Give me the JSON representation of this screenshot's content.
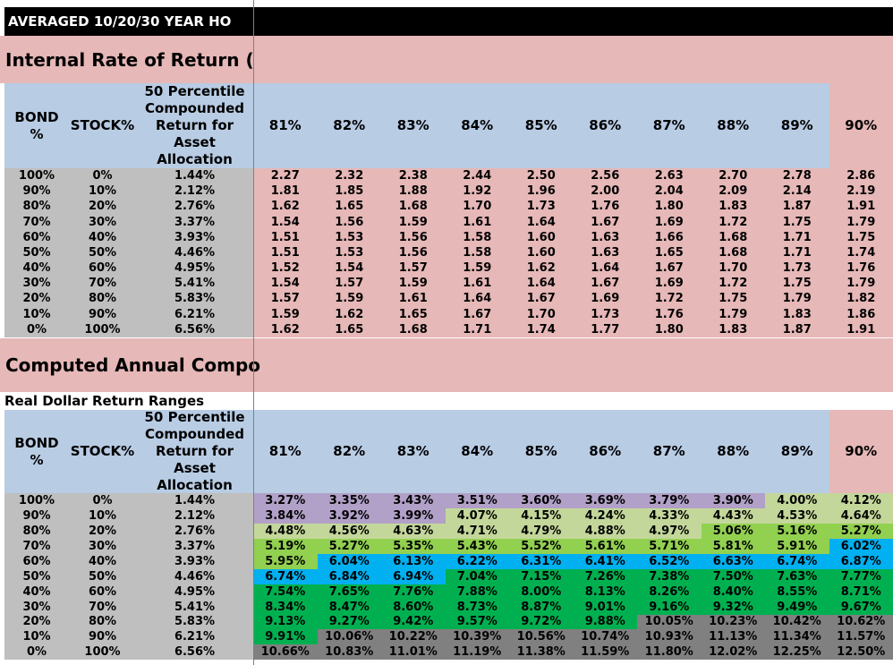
{
  "window": {
    "title_bar_text": "AVERAGED 10/20/30 YEAR HO"
  },
  "headings": {
    "section1": "Internal Rate of Return (",
    "section2": "Computed Annual Compo",
    "subheading_real_dollar": "Real Dollar Return Ranges"
  },
  "colors": {
    "title_bar_bg": "#000000",
    "title_bar_text": "#ffffff",
    "band_pink": "#E6B8B7",
    "header_blue": "#B8CCE4",
    "label_gray": "#BFBFBF",
    "irr_data_pink": "#E6B8B7",
    "divider_gray": "#808080"
  },
  "value_color_bands": {
    "3": "#B1A0C7",
    "4": "#C4D79B",
    "5": "#92D050",
    "6": "#00B0F0",
    "7": "#00B050",
    "8": "#00B050",
    "9": "#00B050",
    "10": "#808080",
    "11": "#808080",
    "12": "#808080"
  },
  "table_header": {
    "bond": "BOND\n%",
    "stock": "STOCK%",
    "percentile": "50 Percentile\nCompounded\nReturn for\nAsset\nAllocation",
    "rate_columns": [
      "81%",
      "82%",
      "83%",
      "84%",
      "85%",
      "86%",
      "87%",
      "88%",
      "89%",
      "90%"
    ]
  },
  "tables": {
    "irr": {
      "rows": [
        {
          "bond": "100%",
          "stock": "0%",
          "median": "1.44%",
          "values": [
            "2.27",
            "2.32",
            "2.38",
            "2.44",
            "2.50",
            "2.56",
            "2.63",
            "2.70",
            "2.78",
            "2.86"
          ]
        },
        {
          "bond": "90%",
          "stock": "10%",
          "median": "2.12%",
          "values": [
            "1.81",
            "1.85",
            "1.88",
            "1.92",
            "1.96",
            "2.00",
            "2.04",
            "2.09",
            "2.14",
            "2.19"
          ]
        },
        {
          "bond": "80%",
          "stock": "20%",
          "median": "2.76%",
          "values": [
            "1.62",
            "1.65",
            "1.68",
            "1.70",
            "1.73",
            "1.76",
            "1.80",
            "1.83",
            "1.87",
            "1.91"
          ]
        },
        {
          "bond": "70%",
          "stock": "30%",
          "median": "3.37%",
          "values": [
            "1.54",
            "1.56",
            "1.59",
            "1.61",
            "1.64",
            "1.67",
            "1.69",
            "1.72",
            "1.75",
            "1.79"
          ]
        },
        {
          "bond": "60%",
          "stock": "40%",
          "median": "3.93%",
          "values": [
            "1.51",
            "1.53",
            "1.56",
            "1.58",
            "1.60",
            "1.63",
            "1.66",
            "1.68",
            "1.71",
            "1.75"
          ]
        },
        {
          "bond": "50%",
          "stock": "50%",
          "median": "4.46%",
          "values": [
            "1.51",
            "1.53",
            "1.56",
            "1.58",
            "1.60",
            "1.63",
            "1.65",
            "1.68",
            "1.71",
            "1.74"
          ]
        },
        {
          "bond": "40%",
          "stock": "60%",
          "median": "4.95%",
          "values": [
            "1.52",
            "1.54",
            "1.57",
            "1.59",
            "1.62",
            "1.64",
            "1.67",
            "1.70",
            "1.73",
            "1.76"
          ]
        },
        {
          "bond": "30%",
          "stock": "70%",
          "median": "5.41%",
          "values": [
            "1.54",
            "1.57",
            "1.59",
            "1.61",
            "1.64",
            "1.67",
            "1.69",
            "1.72",
            "1.75",
            "1.79"
          ]
        },
        {
          "bond": "20%",
          "stock": "80%",
          "median": "5.83%",
          "values": [
            "1.57",
            "1.59",
            "1.61",
            "1.64",
            "1.67",
            "1.69",
            "1.72",
            "1.75",
            "1.79",
            "1.82"
          ]
        },
        {
          "bond": "10%",
          "stock": "90%",
          "median": "6.21%",
          "values": [
            "1.59",
            "1.62",
            "1.65",
            "1.67",
            "1.70",
            "1.73",
            "1.76",
            "1.79",
            "1.83",
            "1.86"
          ]
        },
        {
          "bond": "0%",
          "stock": "100%",
          "median": "6.56%",
          "values": [
            "1.62",
            "1.65",
            "1.68",
            "1.71",
            "1.74",
            "1.77",
            "1.80",
            "1.83",
            "1.87",
            "1.91"
          ]
        }
      ]
    },
    "real_dollar": {
      "rows": [
        {
          "bond": "100%",
          "stock": "0%",
          "median": "1.44%",
          "values": [
            "3.27%",
            "3.35%",
            "3.43%",
            "3.51%",
            "3.60%",
            "3.69%",
            "3.79%",
            "3.90%",
            "4.00%",
            "4.12%"
          ]
        },
        {
          "bond": "90%",
          "stock": "10%",
          "median": "2.12%",
          "values": [
            "3.84%",
            "3.92%",
            "3.99%",
            "4.07%",
            "4.15%",
            "4.24%",
            "4.33%",
            "4.43%",
            "4.53%",
            "4.64%"
          ]
        },
        {
          "bond": "80%",
          "stock": "20%",
          "median": "2.76%",
          "values": [
            "4.48%",
            "4.56%",
            "4.63%",
            "4.71%",
            "4.79%",
            "4.88%",
            "4.97%",
            "5.06%",
            "5.16%",
            "5.27%"
          ]
        },
        {
          "bond": "70%",
          "stock": "30%",
          "median": "3.37%",
          "values": [
            "5.19%",
            "5.27%",
            "5.35%",
            "5.43%",
            "5.52%",
            "5.61%",
            "5.71%",
            "5.81%",
            "5.91%",
            "6.02%"
          ]
        },
        {
          "bond": "60%",
          "stock": "40%",
          "median": "3.93%",
          "values": [
            "5.95%",
            "6.04%",
            "6.13%",
            "6.22%",
            "6.31%",
            "6.41%",
            "6.52%",
            "6.63%",
            "6.74%",
            "6.87%"
          ]
        },
        {
          "bond": "50%",
          "stock": "50%",
          "median": "4.46%",
          "values": [
            "6.74%",
            "6.84%",
            "6.94%",
            "7.04%",
            "7.15%",
            "7.26%",
            "7.38%",
            "7.50%",
            "7.63%",
            "7.77%"
          ]
        },
        {
          "bond": "40%",
          "stock": "60%",
          "median": "4.95%",
          "values": [
            "7.54%",
            "7.65%",
            "7.76%",
            "7.88%",
            "8.00%",
            "8.13%",
            "8.26%",
            "8.40%",
            "8.55%",
            "8.71%"
          ]
        },
        {
          "bond": "30%",
          "stock": "70%",
          "median": "5.41%",
          "values": [
            "8.34%",
            "8.47%",
            "8.60%",
            "8.73%",
            "8.87%",
            "9.01%",
            "9.16%",
            "9.32%",
            "9.49%",
            "9.67%"
          ]
        },
        {
          "bond": "20%",
          "stock": "80%",
          "median": "5.83%",
          "values": [
            "9.13%",
            "9.27%",
            "9.42%",
            "9.57%",
            "9.72%",
            "9.88%",
            "10.05%",
            "10.23%",
            "10.42%",
            "10.62%"
          ]
        },
        {
          "bond": "10%",
          "stock": "90%",
          "median": "6.21%",
          "values": [
            "9.91%",
            "10.06%",
            "10.22%",
            "10.39%",
            "10.56%",
            "10.74%",
            "10.93%",
            "11.13%",
            "11.34%",
            "11.57%"
          ]
        },
        {
          "bond": "0%",
          "stock": "100%",
          "median": "6.56%",
          "values": [
            "10.66%",
            "10.83%",
            "11.01%",
            "11.19%",
            "11.38%",
            "11.59%",
            "11.80%",
            "12.02%",
            "12.25%",
            "12.50%"
          ]
        }
      ]
    }
  }
}
